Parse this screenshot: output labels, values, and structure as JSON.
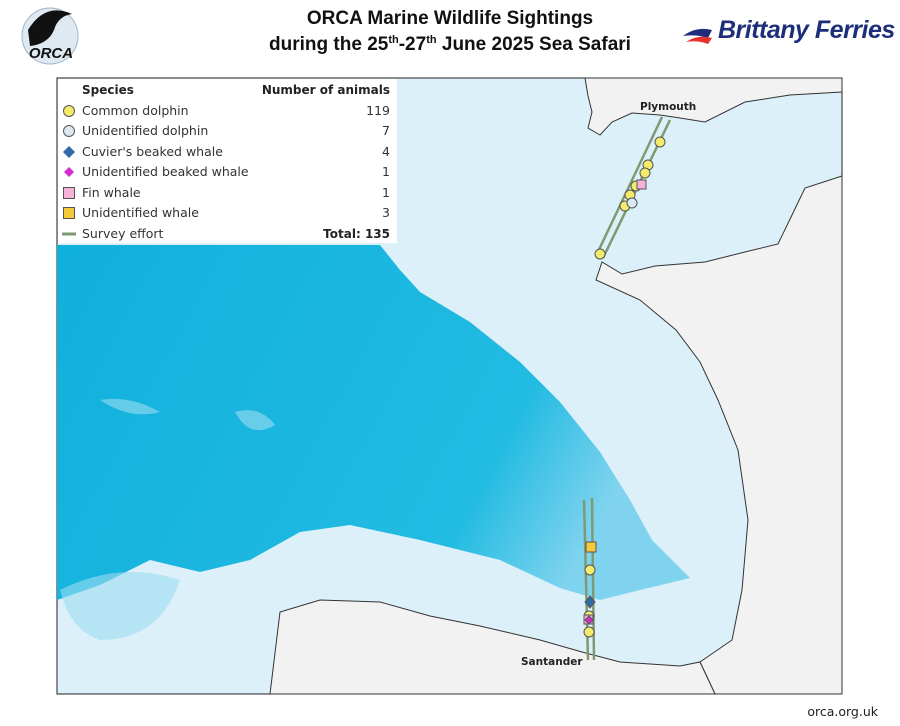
{
  "header": {
    "logo_text": "ORCA",
    "title_line1": "ORCA Marine Wildlife Sightings",
    "title_line2": [
      "during the 25",
      "th",
      "-27",
      "th",
      " June 2025 Sea Safari"
    ],
    "partner": "Brittany Ferries"
  },
  "legend": {
    "species_header": "Species",
    "count_header": "Number of animals",
    "rows": [
      {
        "species": "Common dolphin",
        "count": 119
      },
      {
        "species": "Unidentified dolphin",
        "count": 7
      },
      {
        "species": "Cuvier's beaked whale",
        "count": 4
      },
      {
        "species": "Unidentified beaked whale",
        "count": 1
      },
      {
        "species": "Fin whale",
        "count": 1
      },
      {
        "species": "Unidentified whale",
        "count": 3
      }
    ],
    "survey": "Survey effort",
    "total_label": "Total:",
    "total": 135
  },
  "places": [
    "Plymouth",
    "Santander"
  ],
  "footer": "orca.org.uk"
}
